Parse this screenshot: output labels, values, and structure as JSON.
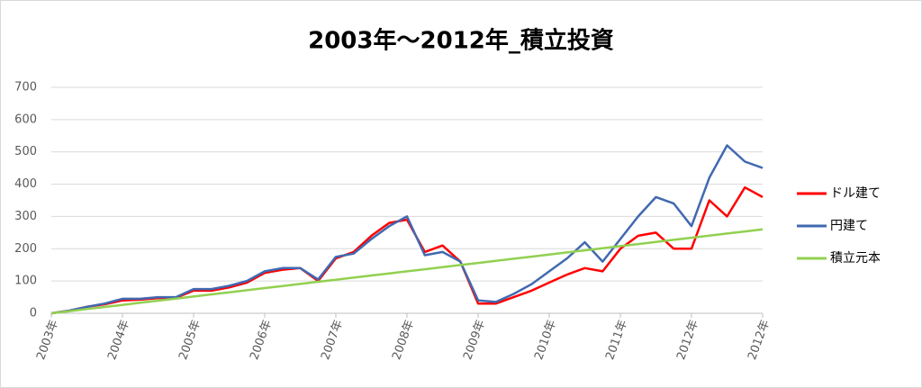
{
  "chart_data": {
    "type": "line",
    "title": "2003年～2012年_積立投資",
    "categories": [
      "2003年",
      null,
      null,
      null,
      "2004年",
      null,
      null,
      null,
      "2005年",
      null,
      null,
      null,
      "2006年",
      null,
      null,
      null,
      "2007年",
      null,
      null,
      null,
      "2008年",
      null,
      null,
      null,
      "2009年",
      null,
      null,
      null,
      "2010年",
      null,
      null,
      null,
      "2011年",
      null,
      null,
      null,
      "2012年",
      null,
      null,
      null,
      "2012年"
    ],
    "series": [
      {
        "name": "ドル建て",
        "color": "#ff0000",
        "values": [
          0,
          8,
          20,
          28,
          40,
          42,
          47,
          48,
          70,
          70,
          80,
          95,
          125,
          135,
          140,
          100,
          170,
          190,
          240,
          280,
          290,
          190,
          210,
          160,
          30,
          30,
          50,
          70,
          95,
          120,
          140,
          130,
          200,
          240,
          250,
          200,
          200,
          350,
          300,
          390,
          360
        ]
      },
      {
        "name": "円建て",
        "color": "#4169b0",
        "values": [
          0,
          8,
          20,
          30,
          45,
          45,
          50,
          50,
          75,
          75,
          85,
          100,
          130,
          140,
          140,
          105,
          175,
          185,
          230,
          270,
          300,
          180,
          190,
          160,
          40,
          35,
          60,
          90,
          130,
          170,
          220,
          160,
          230,
          300,
          360,
          340,
          270,
          420,
          520,
          470,
          450
        ]
      },
      {
        "name": "積立元本",
        "color": "#92d050",
        "values": [
          0,
          6.5,
          13,
          19.5,
          26,
          32.5,
          39,
          45.5,
          52,
          58.5,
          65,
          71.5,
          78,
          84.5,
          91,
          97.5,
          104,
          110.5,
          117,
          123.5,
          130,
          136.5,
          143,
          149.5,
          156,
          162.5,
          169,
          175.5,
          182,
          188.5,
          195,
          201.5,
          208,
          214.5,
          221,
          227.5,
          234,
          240.5,
          247,
          253.5,
          260
        ]
      }
    ],
    "ylim": [
      0,
      700
    ],
    "yticks": [
      0,
      100,
      200,
      300,
      400,
      500,
      600,
      700
    ],
    "grid": true,
    "legend": "right"
  }
}
